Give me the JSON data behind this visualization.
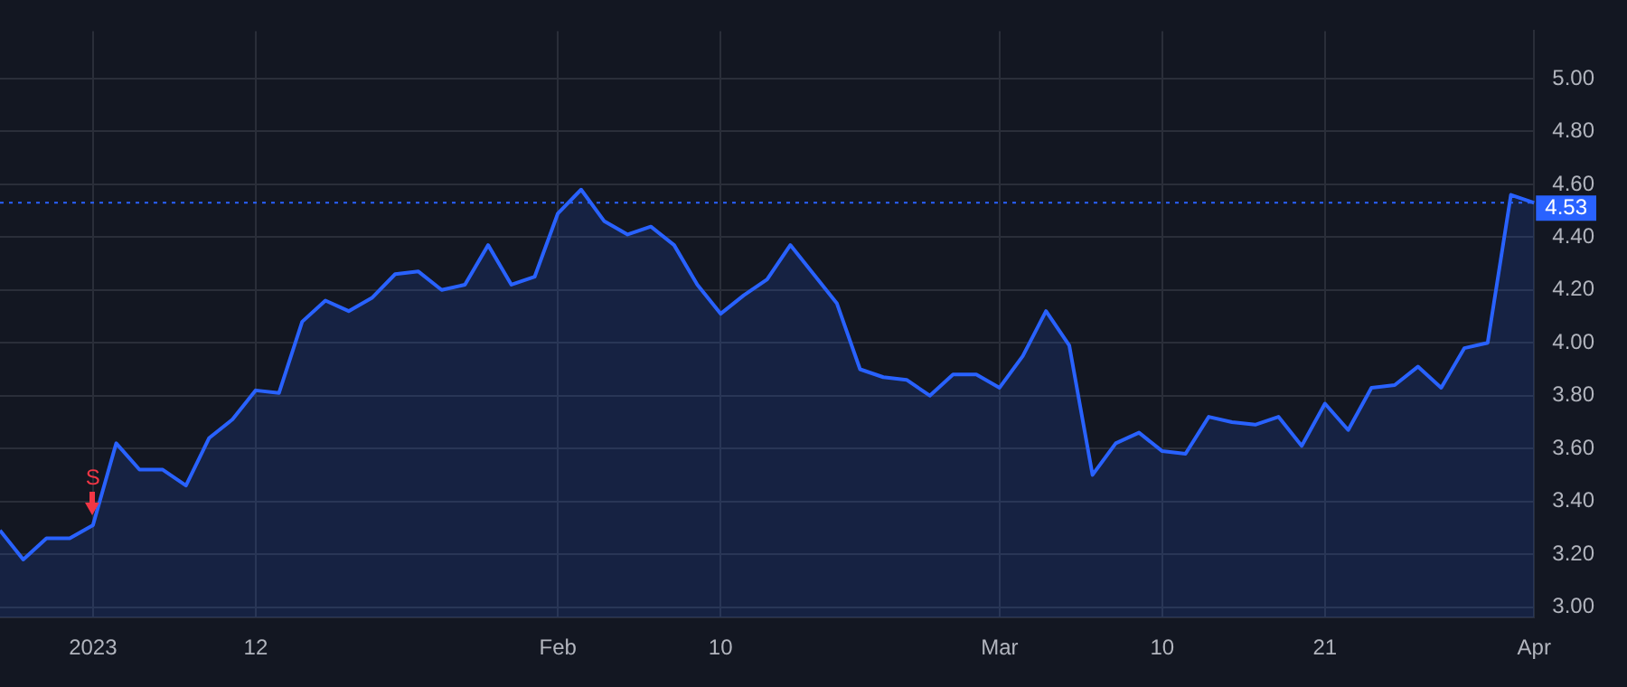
{
  "chart_data": {
    "type": "area",
    "categories": [
      null,
      null,
      null,
      null,
      "2023",
      null,
      null,
      null,
      null,
      null,
      null,
      "12",
      null,
      null,
      null,
      null,
      null,
      null,
      null,
      null,
      null,
      null,
      null,
      null,
      "Feb",
      null,
      null,
      null,
      null,
      null,
      null,
      "10",
      null,
      null,
      null,
      null,
      null,
      null,
      null,
      null,
      null,
      null,
      null,
      "Mar",
      null,
      null,
      null,
      null,
      null,
      null,
      "10",
      null,
      null,
      null,
      null,
      null,
      null,
      "21",
      null,
      null,
      null,
      null,
      null,
      null,
      null,
      null,
      "Apr"
    ],
    "series": [
      {
        "color": "#2962ff",
        "values": [
          3.29,
          3.18,
          3.26,
          3.26,
          3.31,
          3.62,
          3.52,
          3.52,
          3.46,
          3.64,
          3.71,
          3.82,
          3.81,
          4.08,
          4.16,
          4.12,
          4.17,
          4.26,
          4.27,
          4.2,
          4.22,
          4.37,
          4.22,
          4.25,
          4.49,
          4.58,
          4.46,
          4.41,
          4.44,
          4.37,
          4.22,
          4.11,
          4.18,
          4.24,
          4.37,
          4.26,
          4.15,
          3.9,
          3.87,
          3.86,
          3.8,
          3.88,
          3.88,
          3.83,
          3.95,
          4.12,
          3.99,
          3.5,
          3.62,
          3.66,
          3.59,
          3.58,
          3.72,
          3.7,
          3.69,
          3.72,
          3.61,
          3.77,
          3.67,
          3.83,
          3.84,
          3.91,
          3.83,
          3.98,
          4.0,
          4.56,
          4.53
        ]
      }
    ],
    "ylim": [
      2.96,
      5.18
    ],
    "yticks": [
      {
        "value": 3,
        "label": "3.00"
      },
      {
        "value": 3.2,
        "label": "3.20"
      },
      {
        "value": 3.4,
        "label": "3.40"
      },
      {
        "value": 3.6,
        "label": "3.60"
      },
      {
        "value": 3.8,
        "label": "3.80"
      },
      {
        "value": 4,
        "label": "4.00"
      },
      {
        "value": 4.2,
        "label": "4.20"
      },
      {
        "value": 4.4,
        "label": "4.40"
      },
      {
        "value": 4.6,
        "label": "4.60"
      },
      {
        "value": 4.8,
        "label": "4.80"
      },
      {
        "value": 5,
        "label": "5.00"
      }
    ],
    "grid": true,
    "legend": false,
    "marker": "none",
    "line_style": "solid",
    "ref_lines": [
      {
        "axis": "y",
        "value": 4.53,
        "label": "4.53",
        "color": "#2962ff",
        "line_style": "dotted"
      }
    ],
    "annotations": [
      {
        "text": "S",
        "x": "2023",
        "y": 3.31
      }
    ]
  }
}
